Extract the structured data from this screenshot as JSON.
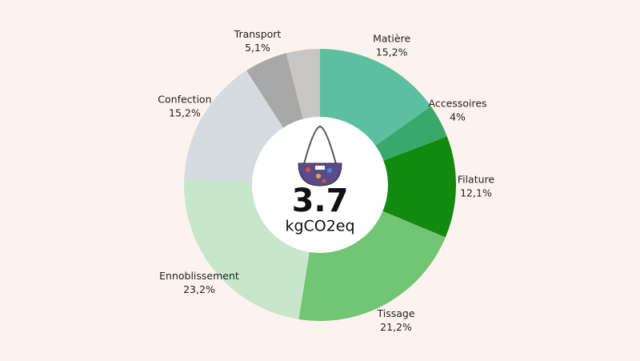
{
  "chart_data": {
    "type": "donut",
    "center_value": "3.7",
    "center_unit": "kgCO2eq",
    "categories": [
      "Matière",
      "Accessoires",
      "Filature",
      "Tissage",
      "Ennoblissement",
      "Confection",
      "Transport",
      null
    ],
    "values": [
      15.2,
      4,
      12.1,
      21.2,
      23.2,
      15.2,
      5.1,
      4
    ],
    "value_labels": [
      "15,2%",
      "4%",
      "12,1%",
      "21,2%",
      "23,2%",
      "15,2%",
      "5,1%",
      null
    ],
    "colors": [
      "#5bbfa0",
      "#3aa86a",
      "#12890f",
      "#72c574",
      "#c8e6cc",
      "#d5dbe1",
      "#a8a8a8",
      "#c8c6c4"
    ]
  }
}
